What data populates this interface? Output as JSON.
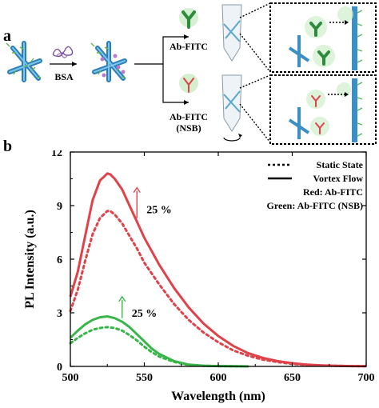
{
  "panel_a": {
    "label": "a",
    "bsa_label": "BSA",
    "top_reagent": "Ab-FITC",
    "bottom_reagent_line1": "Ab-FITC",
    "bottom_reagent_line2": "(NSB)",
    "colors": {
      "fiber": "#3a8fc7",
      "antibody_green": "#39b54a",
      "antibody_red": "#e0424a",
      "bsa": "#7b4fa0"
    }
  },
  "panel_b": {
    "label": "b"
  },
  "chart_data": {
    "type": "line",
    "xlabel": "Wavelength (nm)",
    "ylabel": "PL Intensity (a.u.)",
    "xlim": [
      500,
      700
    ],
    "ylim": [
      0,
      12
    ],
    "x_ticks": [
      500,
      550,
      600,
      650,
      700
    ],
    "y_ticks": [
      0,
      3,
      6,
      9,
      12
    ],
    "grid": false,
    "legend_position": "top-right",
    "legend": [
      {
        "label": "Static State",
        "style": "dotted"
      },
      {
        "label": "Vortex Flow",
        "style": "solid"
      }
    ],
    "legend_notes": [
      "Red: Ab-FITC",
      "Green: Ab-FITC (NSB)"
    ],
    "annotations": [
      {
        "text": "25 %",
        "color": "#e0424a",
        "x": 545,
        "y": 8.8,
        "arrow_from_y": 8.3,
        "arrow_to_y": 10.0
      },
      {
        "text": "25 %",
        "color": "#39b54a",
        "x": 535,
        "y": 3.0,
        "arrow_from_y": 2.7,
        "arrow_to_y": 3.9
      }
    ],
    "series": [
      {
        "color": "#e0424a",
        "style": "solid",
        "x": [
          500,
          505,
          510,
          515,
          520,
          525,
          527,
          530,
          535,
          540,
          545,
          550,
          560,
          570,
          580,
          590,
          600,
          610,
          620,
          630,
          640,
          650,
          660,
          670,
          680,
          690,
          700
        ],
        "y": [
          3.9,
          5.3,
          7.3,
          9.3,
          10.4,
          10.8,
          10.75,
          10.5,
          9.9,
          9.0,
          8.1,
          7.2,
          5.7,
          4.4,
          3.3,
          2.4,
          1.7,
          1.15,
          0.75,
          0.48,
          0.3,
          0.18,
          0.1,
          0.06,
          0.03,
          0.02,
          0.01
        ]
      },
      {
        "color": "#e0424a",
        "style": "dotted",
        "x": [
          500,
          505,
          510,
          515,
          520,
          525,
          527,
          530,
          535,
          540,
          545,
          550,
          560,
          570,
          580,
          590,
          600,
          610,
          620,
          630,
          640,
          650,
          660,
          670,
          680,
          690,
          700
        ],
        "y": [
          3.1,
          4.3,
          5.9,
          7.4,
          8.3,
          8.7,
          8.7,
          8.5,
          8.0,
          7.3,
          6.6,
          5.8,
          4.6,
          3.5,
          2.6,
          1.9,
          1.35,
          0.9,
          0.6,
          0.38,
          0.24,
          0.14,
          0.08,
          0.05,
          0.03,
          0.02,
          0.01
        ]
      },
      {
        "color": "#39b54a",
        "style": "solid",
        "x": [
          500,
          505,
          510,
          515,
          520,
          525,
          530,
          535,
          540,
          545,
          550,
          555,
          560,
          570,
          580,
          590,
          600,
          610,
          620
        ],
        "y": [
          1.6,
          2.0,
          2.35,
          2.6,
          2.75,
          2.8,
          2.7,
          2.5,
          2.2,
          1.8,
          1.4,
          1.0,
          0.7,
          0.3,
          0.1,
          0.04,
          0.02,
          0.01,
          0.0
        ]
      },
      {
        "color": "#39b54a",
        "style": "dotted",
        "x": [
          500,
          505,
          510,
          515,
          520,
          525,
          530,
          535,
          540,
          545,
          550,
          555,
          560,
          570,
          580,
          590,
          600,
          610,
          620
        ],
        "y": [
          1.3,
          1.6,
          1.85,
          2.05,
          2.15,
          2.2,
          2.15,
          2.0,
          1.75,
          1.45,
          1.1,
          0.8,
          0.55,
          0.25,
          0.08,
          0.03,
          0.02,
          0.01,
          0.0
        ]
      }
    ]
  }
}
